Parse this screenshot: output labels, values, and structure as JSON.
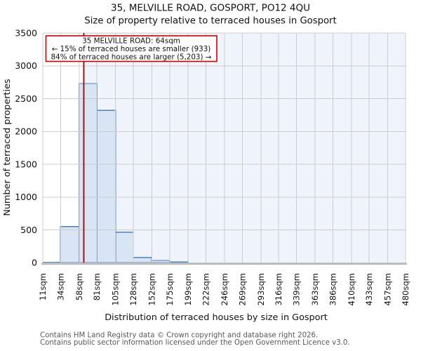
{
  "annotation": {
    "line1": "35 MELVILLE ROAD: 64sqm",
    "line2": "← 15% of terraced houses are smaller (933)",
    "line3": "84% of terraced houses are larger (5,203) →"
  },
  "footer": {
    "line1": "Contains HM Land Registry data © Crown copyright and database right 2026.",
    "line2": "Contains public sector information licensed under the Open Government Licence v3.0."
  },
  "chart_data": {
    "type": "bar",
    "title": "35, MELVILLE ROAD, GOSPORT, PO12 4QU",
    "subtitle": "Size of property relative to terraced houses in Gosport",
    "xlabel": "Distribution of terraced houses by size in Gosport",
    "ylabel": "Number of terraced properties",
    "bin_edges": [
      11,
      34,
      58,
      81,
      105,
      128,
      152,
      175,
      199,
      222,
      246,
      269,
      293,
      316,
      339,
      363,
      386,
      410,
      433,
      457,
      480
    ],
    "x_tick_labels": [
      "11sqm",
      "34sqm",
      "58sqm",
      "81sqm",
      "105sqm",
      "128sqm",
      "152sqm",
      "175sqm",
      "199sqm",
      "222sqm",
      "246sqm",
      "269sqm",
      "293sqm",
      "316sqm",
      "339sqm",
      "363sqm",
      "386sqm",
      "410sqm",
      "433sqm",
      "457sqm",
      "480sqm"
    ],
    "values": [
      8,
      550,
      2730,
      2320,
      465,
      80,
      35,
      10,
      0,
      0,
      0,
      0,
      0,
      0,
      0,
      0,
      0,
      0,
      0,
      0
    ],
    "ylim": [
      0,
      3500
    ],
    "y_ticks": [
      0,
      500,
      1000,
      1500,
      2000,
      2500,
      3000,
      3500
    ],
    "grid": true,
    "legend": false,
    "marker": {
      "value": 64,
      "unit": "sqm"
    },
    "colors": {
      "bar_fill": "#d9e4f5",
      "bar_edge": "#4f81bd",
      "marker_line": "#aa1111",
      "annotation_border": "#cc0000",
      "highlight_bg": "#f0f4fc",
      "grid": "#cccccc",
      "axis": "#b9b9b9"
    }
  }
}
